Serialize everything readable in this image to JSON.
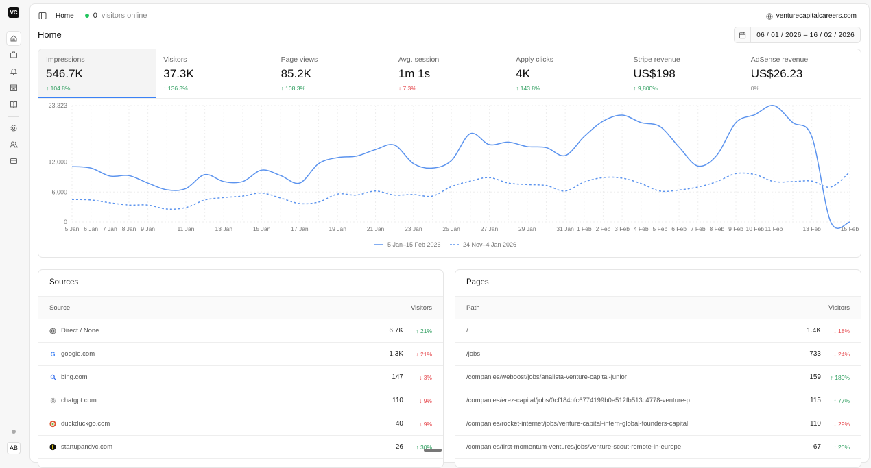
{
  "sidebar": {
    "logo": "VC",
    "avatar": "AB",
    "items": [
      {
        "name": "home",
        "icon": "home-icon"
      },
      {
        "name": "jobs",
        "icon": "briefcase-icon"
      },
      {
        "name": "alerts",
        "icon": "bell-icon"
      },
      {
        "name": "companies",
        "icon": "store-icon"
      },
      {
        "name": "docs",
        "icon": "book-icon"
      },
      {
        "name": "settings",
        "icon": "gear-icon"
      },
      {
        "name": "users",
        "icon": "users-icon"
      },
      {
        "name": "billing",
        "icon": "credit-card-icon"
      }
    ]
  },
  "header": {
    "breadcrumb": "Home",
    "online_count": "0",
    "online_label": "visitors online",
    "site": "venturecapitalcareers.com",
    "title": "Home",
    "date_range": "06 / 01 / 2026  –  16 / 02 / 2026"
  },
  "metrics": [
    {
      "label": "Impressions",
      "value": "546.7K",
      "change": "↑ 104.8%",
      "dir": "up",
      "selected": true
    },
    {
      "label": "Visitors",
      "value": "37.3K",
      "change": "↑ 136.3%",
      "dir": "up"
    },
    {
      "label": "Page views",
      "value": "85.2K",
      "change": "↑ 108.3%",
      "dir": "up"
    },
    {
      "label": "Avg. session",
      "value": "1m 1s",
      "change": "↓ 7.3%",
      "dir": "down"
    },
    {
      "label": "Apply clicks",
      "value": "4K",
      "change": "↑ 143.8%",
      "dir": "up"
    },
    {
      "label": "Stripe revenue",
      "value": "US$198",
      "change": "↑ 9,800%",
      "dir": "up"
    },
    {
      "label": "AdSense revenue",
      "value": "US$26.23",
      "change": "0%",
      "dir": "flat"
    }
  ],
  "chart_data": {
    "type": "line",
    "ylim": [
      0,
      23323
    ],
    "y_ticks": [
      "0",
      "6,000",
      "12,000",
      "23,323"
    ],
    "y_tick_values": [
      0,
      6000,
      12000,
      23323
    ],
    "grid": true,
    "legend_position": "bottom",
    "x": [
      "5 Jan",
      "6 Jan",
      "7 Jan",
      "8 Jan",
      "9 Jan",
      "10 Jan",
      "11 Jan",
      "12 Jan",
      "13 Jan",
      "14 Jan",
      "15 Jan",
      "16 Jan",
      "17 Jan",
      "18 Jan",
      "19 Jan",
      "20 Jan",
      "21 Jan",
      "22 Jan",
      "23 Jan",
      "24 Jan",
      "25 Jan",
      "26 Jan",
      "27 Jan",
      "28 Jan",
      "29 Jan",
      "30 Jan",
      "31 Jan",
      "1 Feb",
      "2 Feb",
      "3 Feb",
      "4 Feb",
      "5 Feb",
      "6 Feb",
      "7 Feb",
      "8 Feb",
      "9 Feb",
      "10 Feb",
      "11 Feb",
      "12 Feb",
      "13 Feb",
      "14 Feb",
      "15 Feb"
    ],
    "x_tick_labels": [
      "5 Jan",
      "6 Jan",
      "7 Jan",
      "8 Jan",
      "9 Jan",
      "11 Jan",
      "13 Jan",
      "15 Jan",
      "17 Jan",
      "19 Jan",
      "21 Jan",
      "23 Jan",
      "25 Jan",
      "27 Jan",
      "29 Jan",
      "31 Jan",
      "1 Feb",
      "2 Feb",
      "3 Feb",
      "4 Feb",
      "5 Feb",
      "6 Feb",
      "7 Feb",
      "8 Feb",
      "9 Feb",
      "10 Feb",
      "11 Feb",
      "13 Feb",
      "15 Feb"
    ],
    "series": [
      {
        "name": "5 Jan–15 Feb 2026",
        "style": "solid",
        "color": "#5b93ee",
        "values": [
          11100,
          10800,
          9200,
          9300,
          7800,
          6450,
          6700,
          9500,
          8100,
          8100,
          10400,
          9300,
          7800,
          11700,
          12900,
          13200,
          14500,
          15400,
          11700,
          10800,
          12300,
          17700,
          15500,
          16000,
          15100,
          14900,
          13300,
          17100,
          20200,
          21400,
          19900,
          19100,
          15000,
          11200,
          13400,
          19900,
          21500,
          23323,
          19900,
          17100,
          0,
          0
        ]
      },
      {
        "name": "24 Nov–4 Jan 2026",
        "style": "dashed",
        "color": "#5b93ee",
        "values": [
          4500,
          4400,
          3850,
          3400,
          3400,
          2600,
          2900,
          4400,
          4900,
          5200,
          5800,
          4800,
          3700,
          4000,
          5600,
          5400,
          6200,
          5400,
          5500,
          5200,
          7100,
          8200,
          8900,
          7800,
          7500,
          7300,
          6200,
          8000,
          8900,
          8800,
          7700,
          6200,
          6400,
          7000,
          8100,
          9700,
          9500,
          8100,
          8100,
          8200,
          7000,
          10000
        ]
      }
    ]
  },
  "sources": {
    "title": "Sources",
    "col1": "Source",
    "col2": "Visitors",
    "rows": [
      {
        "name": "Direct / None",
        "icon": "globe-icon",
        "value": "6.7K",
        "change": "↑ 21%",
        "dir": "up"
      },
      {
        "name": "google.com",
        "icon": "google-icon",
        "value": "1.3K",
        "change": "↓ 21%",
        "dir": "down"
      },
      {
        "name": "bing.com",
        "icon": "bing-icon",
        "value": "147",
        "change": "↓ 3%",
        "dir": "down"
      },
      {
        "name": "chatgpt.com",
        "icon": "chatgpt-icon",
        "value": "110",
        "change": "↓ 9%",
        "dir": "down"
      },
      {
        "name": "duckduckgo.com",
        "icon": "duckduckgo-icon",
        "value": "40",
        "change": "↓ 9%",
        "dir": "down"
      },
      {
        "name": "startupandvc.com",
        "icon": "startupandvc-icon",
        "value": "26",
        "change": "↑ 30%",
        "dir": "up"
      }
    ]
  },
  "pages": {
    "title": "Pages",
    "col1": "Path",
    "col2": "Visitors",
    "rows": [
      {
        "name": "/",
        "value": "1.4K",
        "change": "↓ 18%",
        "dir": "down"
      },
      {
        "name": "/jobs",
        "value": "733",
        "change": "↓ 24%",
        "dir": "down"
      },
      {
        "name": "/companies/weboost/jobs/analista-venture-capital-junior",
        "value": "159",
        "change": "↑ 189%",
        "dir": "up"
      },
      {
        "name": "/companies/erez-capital/jobs/0cf184bfc6774199b0e512fb513c4778-venture-p…",
        "value": "115",
        "change": "↑ 77%",
        "dir": "up"
      },
      {
        "name": "/companies/rocket-internet/jobs/venture-capital-intern-global-founders-capital",
        "value": "110",
        "change": "↓ 29%",
        "dir": "down"
      },
      {
        "name": "/companies/first-momentum-ventures/jobs/venture-scout-remote-in-europe",
        "value": "67",
        "change": "↑ 20%",
        "dir": "up"
      }
    ]
  }
}
